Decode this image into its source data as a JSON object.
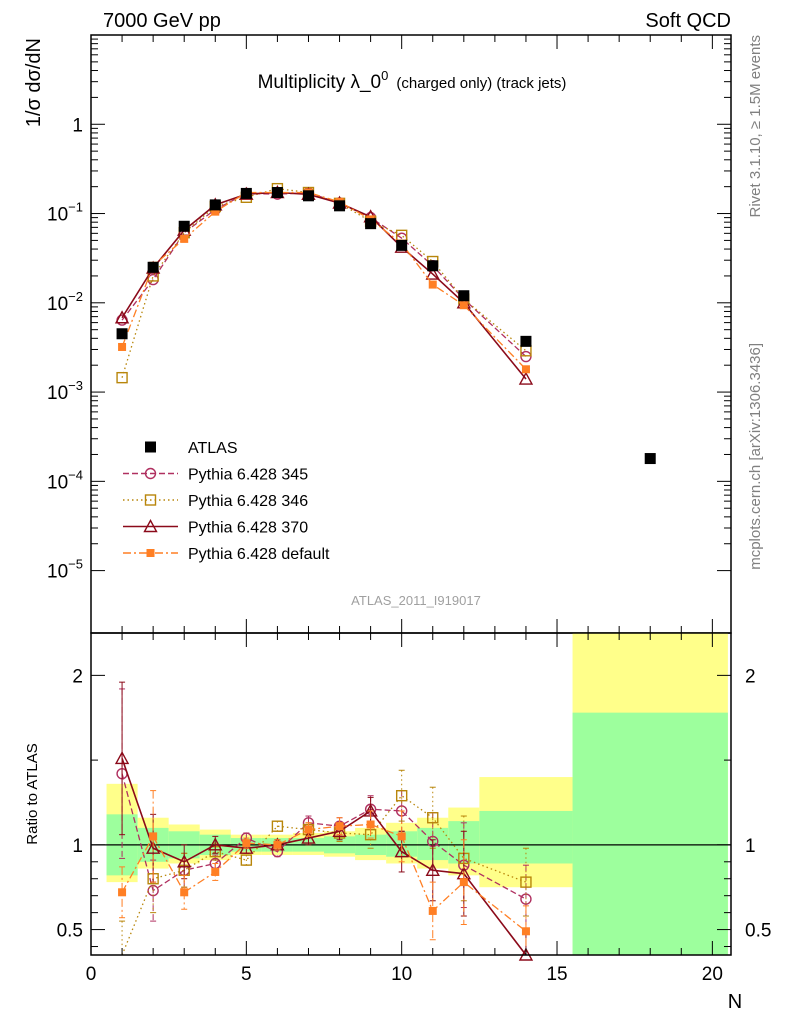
{
  "header": {
    "left": "7000 GeV pp",
    "right": "Soft QCD"
  },
  "side_labels": {
    "rivet": "Rivet 3.1.10, ≥ 1.5M events",
    "mcplots": "mcplots.cern.ch [arXiv:1306.3436]"
  },
  "colors": {
    "ATLAS": "#000000",
    "Pythia 6.428 345": "#b03060",
    "Pythia 6.428 346": "#b8860b",
    "Pythia 6.428 370": "#8b0a1a",
    "Pythia 6.428 default": "#ff7f24",
    "band_inner": "#9dff9d",
    "band_outer": "#ffff8a"
  },
  "chart_data": [
    {
      "type": "scatter",
      "panel": "main",
      "title": "Multiplicity λ_0",
      "title_sup": "0",
      "title_suffix": "(charged only) (track jets)",
      "ylabel": "1/σ dσ/dN",
      "xlabel": "",
      "xlim": [
        0,
        20.6
      ],
      "ylim": [
        2e-06,
        10
      ],
      "yscale": "log",
      "yticklabels": [
        {
          "base": "10",
          "exp": "−5",
          "value": 1e-05
        },
        {
          "base": "10",
          "exp": "−4",
          "value": 0.0001
        },
        {
          "base": "10",
          "exp": "−3",
          "value": 0.001
        },
        {
          "base": "10",
          "exp": "−2",
          "value": 0.01
        },
        {
          "base": "10",
          "exp": "−1",
          "value": 0.1
        },
        {
          "base": "1",
          "exp": "",
          "value": 1
        }
      ],
      "watermark": "ATLAS_2011_I919017",
      "legend_position": "lower-left",
      "series": [
        {
          "name": "ATLAS",
          "style": "data",
          "x": [
            1,
            2,
            3,
            4,
            5,
            6,
            7,
            8,
            9,
            10,
            11,
            12,
            14,
            18
          ],
          "y": [
            0.0045,
            0.025,
            0.072,
            0.125,
            0.168,
            0.172,
            0.158,
            0.122,
            0.077,
            0.044,
            0.026,
            0.012,
            0.0037,
            0.00018
          ]
        },
        {
          "name": "Pythia 6.428 345",
          "style": "dashed",
          "marker": "circle",
          "x": [
            1,
            2,
            3,
            4,
            5,
            6,
            7,
            8,
            9,
            10,
            11,
            12,
            14
          ],
          "y": [
            0.0064,
            0.0182,
            0.061,
            0.111,
            0.168,
            0.165,
            0.171,
            0.131,
            0.09,
            0.053,
            0.026,
            0.011,
            0.0025
          ]
        },
        {
          "name": "Pythia 6.428 346",
          "style": "dotted",
          "marker": "square-open",
          "x": [
            1,
            2,
            3,
            4,
            5,
            6,
            7,
            8,
            9,
            10,
            11,
            12,
            14
          ],
          "y": [
            0.00145,
            0.02,
            0.061,
            0.12,
            0.152,
            0.19,
            0.172,
            0.13,
            0.082,
            0.057,
            0.029,
            0.011,
            0.0029
          ]
        },
        {
          "name": "Pythia 6.428 370",
          "style": "solid",
          "marker": "triangle",
          "x": [
            1,
            2,
            3,
            4,
            5,
            6,
            7,
            8,
            9,
            10,
            11,
            12,
            14
          ],
          "y": [
            0.0068,
            0.0245,
            0.065,
            0.125,
            0.165,
            0.172,
            0.164,
            0.131,
            0.092,
            0.042,
            0.021,
            0.01,
            0.0014
          ]
        },
        {
          "name": "Pythia 6.428 default",
          "style": "dashdot",
          "marker": "square-filled",
          "x": [
            1,
            2,
            3,
            4,
            5,
            6,
            7,
            8,
            9,
            10,
            11,
            12,
            14
          ],
          "y": [
            0.0032,
            0.026,
            0.052,
            0.105,
            0.172,
            0.172,
            0.172,
            0.135,
            0.086,
            0.046,
            0.016,
            0.0094,
            0.0018
          ]
        }
      ]
    },
    {
      "type": "scatter",
      "panel": "ratio",
      "title": "",
      "ylabel": "Ratio to ATLAS",
      "xlabel": "N",
      "xlim": [
        0,
        20.6
      ],
      "ylim": [
        0.35,
        2.25
      ],
      "yticklabels": [
        "0.5",
        "1",
        "2"
      ],
      "xticklabels": [
        "0",
        "5",
        "10",
        "15",
        "20"
      ],
      "bands": [
        {
          "x0": 0.5,
          "x1": 1.5,
          "inner": [
            0.82,
            1.18
          ],
          "outer": [
            0.78,
            1.36
          ]
        },
        {
          "x0": 1.5,
          "x1": 2.5,
          "inner": [
            0.9,
            1.1
          ],
          "outer": [
            0.86,
            1.16
          ]
        },
        {
          "x0": 2.5,
          "x1": 3.5,
          "inner": [
            0.92,
            1.08
          ],
          "outer": [
            0.89,
            1.12
          ]
        },
        {
          "x0": 3.5,
          "x1": 4.5,
          "inner": [
            0.94,
            1.06
          ],
          "outer": [
            0.91,
            1.09
          ]
        },
        {
          "x0": 4.5,
          "x1": 5.5,
          "inner": [
            0.96,
            1.04
          ],
          "outer": [
            0.94,
            1.06
          ]
        },
        {
          "x0": 5.5,
          "x1": 6.5,
          "inner": [
            0.96,
            1.04
          ],
          "outer": [
            0.94,
            1.06
          ]
        },
        {
          "x0": 6.5,
          "x1": 7.5,
          "inner": [
            0.96,
            1.04
          ],
          "outer": [
            0.94,
            1.07
          ]
        },
        {
          "x0": 7.5,
          "x1": 8.5,
          "inner": [
            0.95,
            1.05
          ],
          "outer": [
            0.93,
            1.08
          ]
        },
        {
          "x0": 8.5,
          "x1": 9.5,
          "inner": [
            0.94,
            1.06
          ],
          "outer": [
            0.91,
            1.1
          ]
        },
        {
          "x0": 9.5,
          "x1": 10.5,
          "inner": [
            0.93,
            1.08
          ],
          "outer": [
            0.89,
            1.13
          ]
        },
        {
          "x0": 10.5,
          "x1": 11.5,
          "inner": [
            0.91,
            1.1
          ],
          "outer": [
            0.86,
            1.16
          ]
        },
        {
          "x0": 11.5,
          "x1": 12.5,
          "inner": [
            0.89,
            1.14
          ],
          "outer": [
            0.82,
            1.22
          ]
        },
        {
          "x0": 12.5,
          "x1": 15.5,
          "inner": [
            0.89,
            1.2
          ],
          "outer": [
            0.75,
            1.4
          ]
        },
        {
          "x0": 15.5,
          "x1": 20.5,
          "inner": [
            0.2,
            1.78
          ],
          "outer": [
            0.2,
            2.3
          ]
        }
      ],
      "series": [
        {
          "name": "Pythia 6.428 345",
          "x": [
            1,
            2,
            3,
            4,
            5,
            6,
            7,
            8,
            9,
            10,
            11,
            12,
            14
          ],
          "y": [
            1.42,
            0.73,
            0.85,
            0.89,
            1.04,
            0.96,
            1.13,
            1.11,
            1.21,
            1.2,
            1.02,
            0.88,
            0.68
          ],
          "err": [
            0.5,
            0.18,
            0.1,
            0.05,
            0.03,
            0.03,
            0.04,
            0.05,
            0.08,
            0.12,
            0.17,
            0.25,
            0.2
          ]
        },
        {
          "name": "Pythia 6.428 346",
          "x": [
            1,
            2,
            3,
            4,
            5,
            6,
            7,
            8,
            9,
            10,
            11,
            12,
            14
          ],
          "y": [
            0.3,
            0.8,
            0.85,
            0.96,
            0.91,
            1.11,
            1.09,
            1.07,
            1.06,
            1.29,
            1.16,
            0.92,
            0.78
          ],
          "err": [
            0.25,
            0.2,
            0.1,
            0.05,
            0.03,
            0.03,
            0.04,
            0.05,
            0.08,
            0.15,
            0.18,
            0.25,
            0.2
          ]
        },
        {
          "name": "Pythia 6.428 370",
          "x": [
            1,
            2,
            3,
            4,
            5,
            6,
            7,
            8,
            9,
            10,
            11,
            12,
            14
          ],
          "y": [
            1.51,
            0.98,
            0.9,
            1.0,
            0.98,
            1.0,
            1.04,
            1.08,
            1.2,
            0.96,
            0.85,
            0.83,
            0.35
          ],
          "err": [
            0.45,
            0.2,
            0.1,
            0.05,
            0.03,
            0.03,
            0.04,
            0.05,
            0.08,
            0.12,
            0.18,
            0.25,
            0.15
          ]
        },
        {
          "name": "Pythia 6.428 default",
          "x": [
            1,
            2,
            3,
            4,
            5,
            6,
            7,
            8,
            9,
            10,
            11,
            12,
            14
          ],
          "y": [
            0.72,
            1.05,
            0.72,
            0.84,
            1.01,
            1.0,
            1.09,
            1.11,
            1.12,
            1.05,
            0.61,
            0.78,
            0.49
          ],
          "err": [
            0.15,
            0.27,
            0.1,
            0.05,
            0.03,
            0.03,
            0.04,
            0.05,
            0.08,
            0.15,
            0.17,
            0.25,
            0.15
          ]
        }
      ]
    }
  ]
}
